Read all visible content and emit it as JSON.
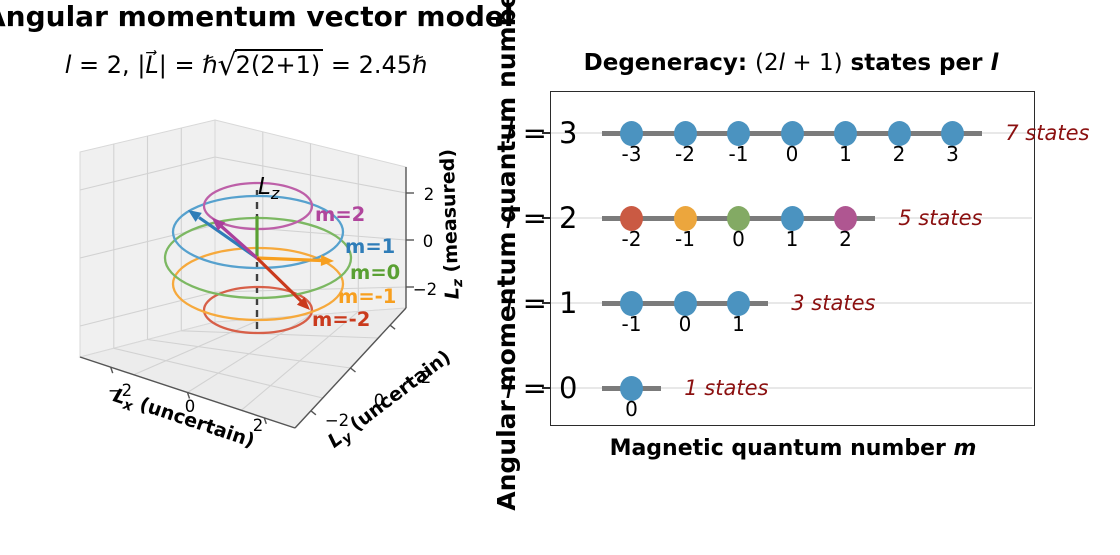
{
  "left_plot": {
    "title": "Angular momentum vector model",
    "subtitle": {
      "lead_l": "l",
      "eq": " = 2,  ",
      "pipe1": "|",
      "L_vec": "L⃗",
      "pipe2": "| = ℏ",
      "sqrt": "√",
      "radicand": "2(2+1)",
      "result": " = 2.45ℏ"
    },
    "lz_marker": {
      "sym": "L",
      "sub": "z"
    },
    "axis": {
      "x_sym": "L",
      "x_sub": "x",
      "x_rest": " (uncertain)",
      "y_sym": "L",
      "y_sub": "y",
      "y_rest": " (uncertain)",
      "z_sym": "L",
      "z_sub": "z",
      "z_rest": " (measured)",
      "x_ticks": [
        "−2",
        "0",
        "2"
      ],
      "y_ticks": [
        "−2",
        "0",
        "2"
      ],
      "z_ticks": [
        "2",
        "0",
        "−2"
      ]
    },
    "m_labels": [
      {
        "text": "m=2",
        "color": "#b0459c"
      },
      {
        "text": "m=1",
        "color": "#2f7db8"
      },
      {
        "text": "m=0",
        "color": "#5aa033"
      },
      {
        "text": "m=-1",
        "color": "#f79f1f"
      },
      {
        "text": "m=-2",
        "color": "#ca3a1d"
      }
    ],
    "cone_colors": {
      "m2": "#bd5fa8",
      "m1": "#56a1ce",
      "m0": "#7cb862",
      "m_1": "#f6a93c",
      "m_2": "#d75f48"
    }
  },
  "right_plot": {
    "title": {
      "bold1": "Degeneracy: ",
      "math_open": "(2",
      "math_l": "l",
      "math_close": " + 1)",
      "bold2": " states per ",
      "tail_l": "l"
    },
    "x_label": {
      "text": "Magnetic quantum number ",
      "italic": "m"
    },
    "y_label": "Angular momentum quantum number",
    "tick_italic": "l",
    "tick_eq": " = ",
    "dot_color": "#4b93c0",
    "states_color": "#8b1010",
    "rows": [
      {
        "l": 3,
        "label_value": "3",
        "m": [
          -3,
          -2,
          -1,
          0,
          1,
          2,
          3
        ],
        "m_labels": [
          "-3",
          "-2",
          "-1",
          "0",
          "1",
          "2",
          "3"
        ],
        "colors": null,
        "states": "7 states"
      },
      {
        "l": 2,
        "label_value": "2",
        "m": [
          -2,
          -1,
          0,
          1,
          2
        ],
        "m_labels": [
          "-2",
          "-1",
          "0",
          "1",
          "2"
        ],
        "colors": [
          "#ca5a43",
          "#eca63d",
          "#83aa64",
          "#4b93c0",
          "#af5691"
        ],
        "states": "5 states"
      },
      {
        "l": 1,
        "label_value": "1",
        "m": [
          -1,
          0,
          1
        ],
        "m_labels": [
          "-1",
          "0",
          "1"
        ],
        "colors": null,
        "states": "3 states"
      },
      {
        "l": 0,
        "label_value": "0",
        "m": [
          0
        ],
        "m_labels": [
          "0"
        ],
        "colors": null,
        "states": "1 states"
      }
    ]
  },
  "chart_data": [
    {
      "type": "scatter",
      "title": "Angular momentum vector model",
      "subtitle": "l = 2, |L| = ℏ√(2(2+1)) = 2.45ℏ",
      "l": 2,
      "L_magnitude_hbar": 2.45,
      "m_values": [
        2,
        1,
        0,
        -1,
        -2
      ],
      "circle_radii_hbar": [
        1.41,
        2.24,
        2.45,
        2.24,
        1.41
      ],
      "xlabel": "Lx (uncertain)",
      "ylabel": "Ly (uncertain)",
      "zlabel": "Lz (measured)",
      "xticks": [
        -2,
        0,
        2
      ],
      "yticks": [
        -2,
        0,
        2
      ],
      "zticks": [
        2,
        0,
        -2
      ],
      "legend_position": "right-of-circles"
    },
    {
      "type": "scatter",
      "title": "Degeneracy: (2l + 1) states per l",
      "xlabel": "Magnetic quantum number m",
      "ylabel": "Angular momentum quantum number",
      "ylim": [
        -0.45,
        3.5
      ],
      "grid": true,
      "series": [
        {
          "name": "l = 3",
          "y": 3,
          "m": [
            -3,
            -2,
            -1,
            0,
            1,
            2,
            3
          ],
          "count": 7,
          "annotation": "7 states"
        },
        {
          "name": "l = 2",
          "y": 2,
          "m": [
            -2,
            -1,
            0,
            1,
            2
          ],
          "count": 5,
          "annotation": "5 states"
        },
        {
          "name": "l = 1",
          "y": 1,
          "m": [
            -1,
            0,
            1
          ],
          "count": 3,
          "annotation": "3 states"
        },
        {
          "name": "l = 0",
          "y": 0,
          "m": [
            0
          ],
          "count": 1,
          "annotation": "1 states"
        }
      ]
    }
  ]
}
